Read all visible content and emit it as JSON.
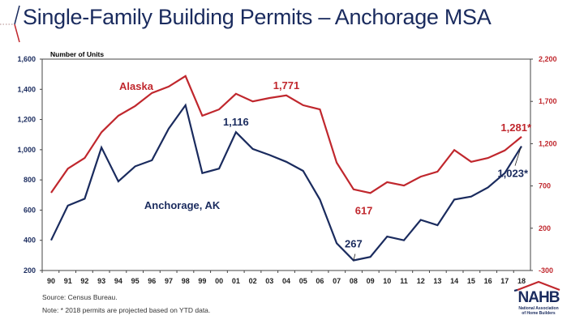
{
  "header": {
    "title": "Single-Family Building Permits – Anchorage MSA"
  },
  "footer": {
    "source": "Source: Census Bureau.",
    "note": "Note: * 2018 permits are projected based on YTD data."
  },
  "logo": {
    "name": "NAHB",
    "subtitle_line1": "National Association",
    "subtitle_line2": "of Home Builders",
    "colors": {
      "navy": "#1a2b5e",
      "red": "#c0272d"
    }
  },
  "chart_data": {
    "type": "line",
    "title": "Single-Family Building Permits – Anchorage MSA",
    "ylabel": "Number of Units",
    "xlabel": "",
    "categories": [
      "90",
      "91",
      "92",
      "93",
      "94",
      "95",
      "96",
      "97",
      "98",
      "99",
      "00",
      "01",
      "02",
      "03",
      "04",
      "05",
      "06",
      "07",
      "08",
      "09",
      "10",
      "11",
      "12",
      "13",
      "14",
      "15",
      "16",
      "17",
      "18"
    ],
    "y_left": {
      "min": 200,
      "max": 1600,
      "ticks": [
        "200",
        "400",
        "600",
        "800",
        "1,000",
        "1,200",
        "1,400",
        "1,600"
      ],
      "tick_values": [
        200,
        400,
        600,
        800,
        1000,
        1200,
        1400,
        1600
      ],
      "color": "#1a2b5e"
    },
    "y_right": {
      "min": -300,
      "max": 2200,
      "ticks": [
        "-300",
        "200",
        "700",
        "1,200",
        "1,700",
        "2,200"
      ],
      "tick_values": [
        -300,
        200,
        700,
        1200,
        1700,
        2200
      ],
      "color": "#c0272d"
    },
    "grid": false,
    "series": [
      {
        "name": "Anchorage, AK",
        "axis": "left",
        "color": "#1a2b5e",
        "values": [
          400,
          630,
          675,
          1015,
          790,
          890,
          930,
          1140,
          1295,
          845,
          875,
          1116,
          1005,
          965,
          920,
          860,
          670,
          380,
          267,
          290,
          425,
          400,
          535,
          500,
          670,
          690,
          750,
          845,
          1023
        ]
      },
      {
        "name": "Alaska",
        "axis": "right",
        "color": "#c0272d",
        "values": [
          620,
          905,
          1030,
          1335,
          1530,
          1645,
          1800,
          1875,
          2000,
          1530,
          1605,
          1790,
          1700,
          1740,
          1771,
          1655,
          1605,
          975,
          660,
          617,
          745,
          705,
          810,
          870,
          1125,
          985,
          1030,
          1120,
          1281
        ]
      }
    ],
    "annotations": [
      {
        "series": "Alaska",
        "category": "04",
        "text": "1,771"
      },
      {
        "series": "Alaska",
        "category": "09",
        "text": "617"
      },
      {
        "series": "Alaska",
        "category": "18",
        "text": "1,281*"
      },
      {
        "series": "Anchorage, AK",
        "category": "01",
        "text": "1,116"
      },
      {
        "series": "Anchorage, AK",
        "category": "08",
        "text": "267"
      },
      {
        "series": "Anchorage, AK",
        "category": "18",
        "text": "1,023*"
      }
    ],
    "series_labels": [
      {
        "series": "Alaska",
        "text": "Alaska"
      },
      {
        "series": "Anchorage, AK",
        "text": "Anchorage, AK"
      }
    ]
  }
}
